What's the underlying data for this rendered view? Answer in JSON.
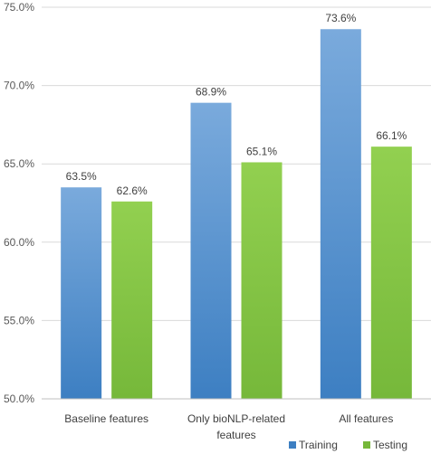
{
  "chart_data": {
    "type": "bar",
    "categories": [
      [
        "Baseline features"
      ],
      [
        "Only bioNLP-related",
        "features"
      ],
      [
        "All features"
      ]
    ],
    "series": [
      {
        "name": "Training",
        "values": [
          63.5,
          68.9,
          73.6
        ],
        "labels": [
          "63.5%",
          "68.9%",
          "73.6%"
        ],
        "color_top": "#7aaadc",
        "color_bottom": "#3d7fc2"
      },
      {
        "name": "Testing",
        "values": [
          62.6,
          65.1,
          66.1
        ],
        "labels": [
          "62.6%",
          "65.1%",
          "66.1%"
        ],
        "color_top": "#92d050",
        "color_bottom": "#76b83a"
      }
    ],
    "ylim": [
      50,
      75
    ],
    "yticks": [
      50,
      55,
      60,
      65,
      70,
      75
    ],
    "ytick_labels": [
      "50.0%",
      "55.0%",
      "60.0%",
      "65.0%",
      "70.0%",
      "75.0%"
    ],
    "grid": true,
    "legend_position": "bottom-right"
  }
}
